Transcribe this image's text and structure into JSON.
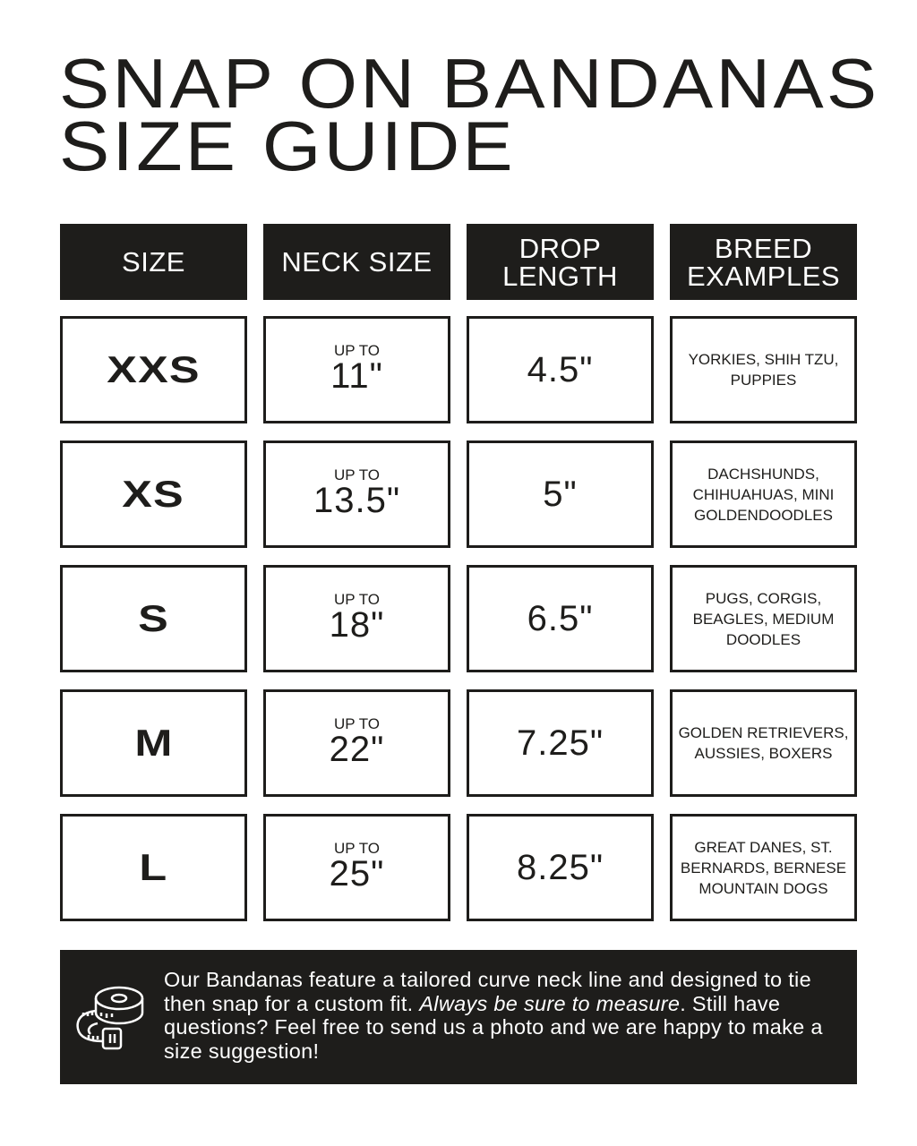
{
  "title": {
    "line1": "SNAP ON BANDANAS",
    "line2": "SIZE GUIDE"
  },
  "headers": [
    "SIZE",
    "NECK SIZE",
    "DROP LENGTH",
    "BREED EXAMPLES"
  ],
  "rows": [
    {
      "size": "XXS",
      "neck_prefix": "UP TO",
      "neck": "11\"",
      "drop": "4.5\"",
      "breeds": "YORKIES, SHIH TZU, PUPPIES"
    },
    {
      "size": "XS",
      "neck_prefix": "UP TO",
      "neck": "13.5\"",
      "drop": "5\"",
      "breeds": "DACHSHUNDS, CHIHUAHUAS, MINI GOLDENDOODLES"
    },
    {
      "size": "S",
      "neck_prefix": "UP TO",
      "neck": "18\"",
      "drop": "6.5\"",
      "breeds": "PUGS, CORGIS, BEAGLES, MEDIUM DOODLES"
    },
    {
      "size": "M",
      "neck_prefix": "UP TO",
      "neck": "22\"",
      "drop": "7.25\"",
      "breeds": "GOLDEN RETRIEVERS, AUSSIES, BOXERS"
    },
    {
      "size": "L",
      "neck_prefix": "UP TO",
      "neck": "25\"",
      "drop": "8.25\"",
      "breeds": "GREAT DANES, ST. BERNARDS, BERNESE MOUNTAIN DOGS"
    }
  ],
  "footer": {
    "icon": "measuring-tape-icon",
    "text_before": "Our Bandanas feature a tailored curve neck line and designed to tie then snap for a custom fit. ",
    "text_italic": "Always be sure to measure",
    "text_after": ". Still have questions? Feel free to send us a photo and we are happy to make a size suggestion!"
  },
  "colors": {
    "ink": "#1e1d1b",
    "background": "#ffffff"
  }
}
